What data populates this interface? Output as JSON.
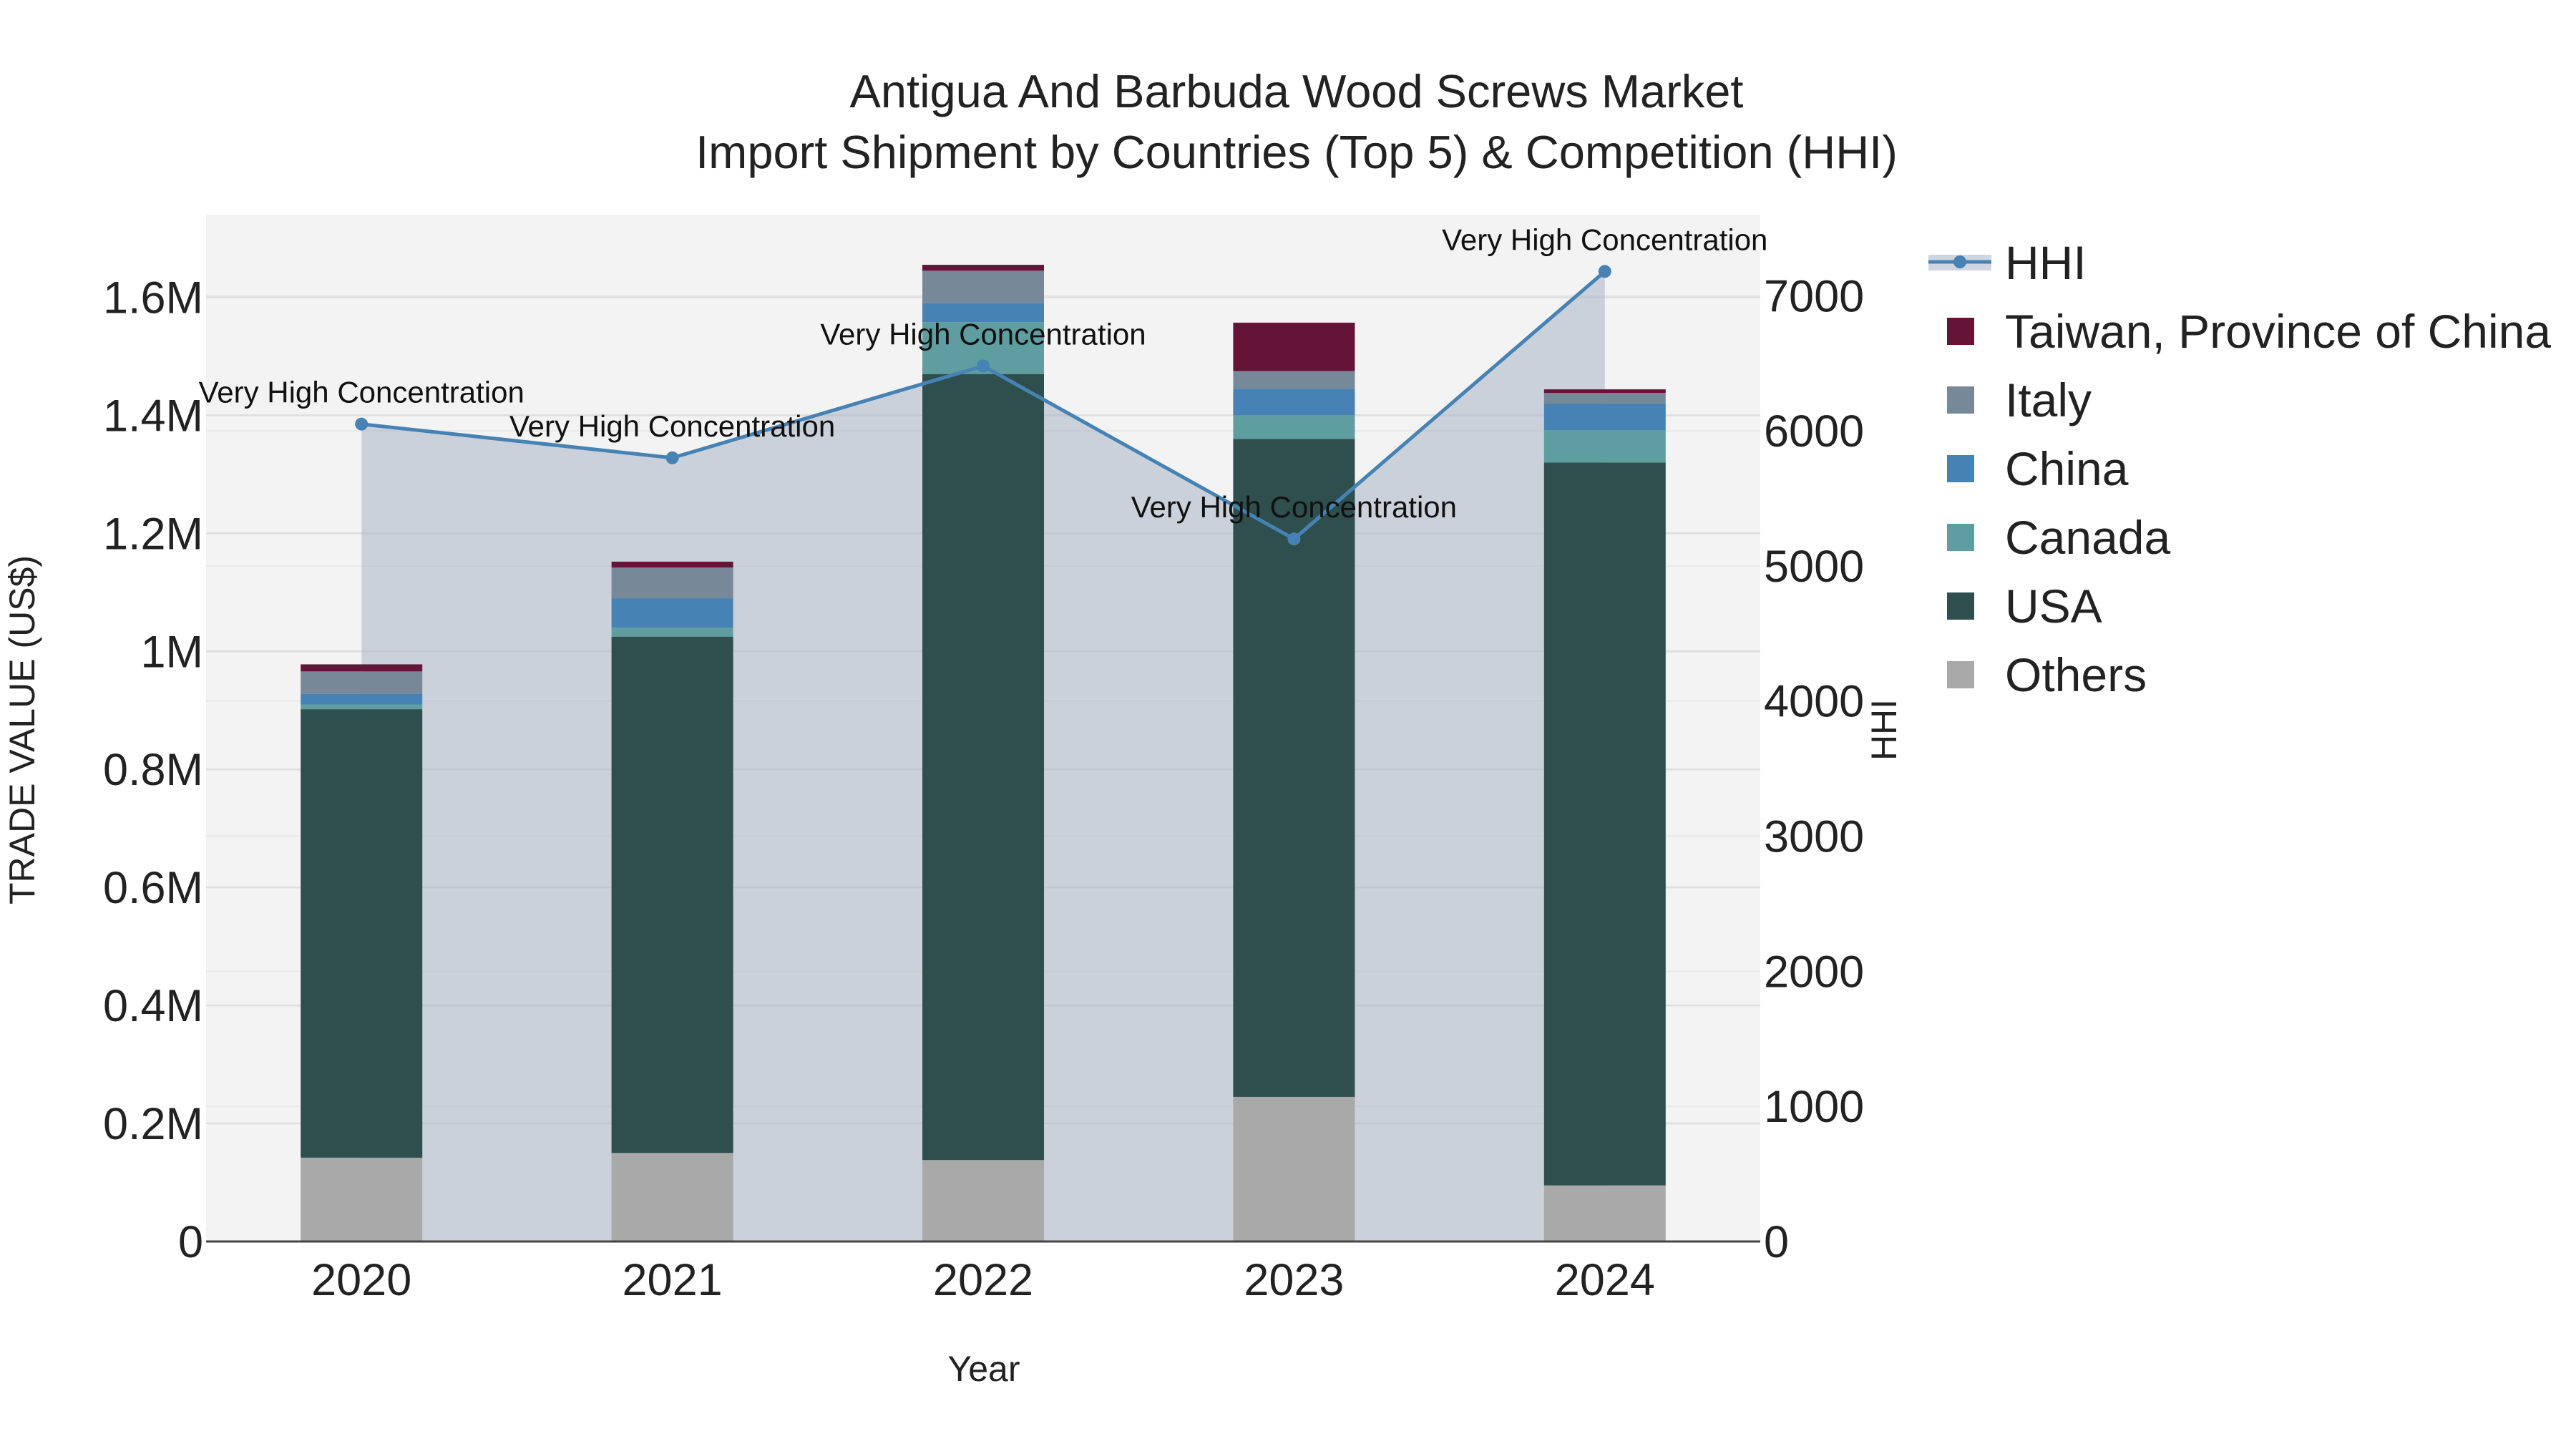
{
  "chart_data": {
    "type": "bar",
    "title": "Antigua And Barbuda Wood Screws Market",
    "subtitle": "Import Shipment by Countries (Top 5) & Competition (HHI)",
    "xlabel": "Year",
    "ylabel": "TRADE VALUE (US$)",
    "y2label": "HHI",
    "categories": [
      "2020",
      "2021",
      "2022",
      "2023",
      "2024"
    ],
    "ylim": [
      0,
      1740000
    ],
    "y2lim": [
      0,
      7600
    ],
    "yticks": [
      0,
      200000,
      400000,
      600000,
      800000,
      1000000,
      1200000,
      1400000,
      1600000
    ],
    "ytick_labels": [
      "0",
      "0.2M",
      "0.4M",
      "0.6M",
      "0.8M",
      "1M",
      "1.2M",
      "1.4M",
      "1.6M"
    ],
    "y2ticks": [
      0,
      1000,
      2000,
      3000,
      4000,
      5000,
      6000,
      7000
    ],
    "y2tick_labels": [
      "0",
      "1000",
      "2000",
      "3000",
      "4000",
      "5000",
      "6000",
      "7000"
    ],
    "series": [
      {
        "name": "Others",
        "color": "#a9a9a9",
        "values": [
          142000,
          150000,
          138000,
          245000,
          95000
        ]
      },
      {
        "name": "USA",
        "color": "#2f4f4f",
        "values": [
          760000,
          875000,
          1332000,
          1115000,
          1225000
        ]
      },
      {
        "name": "Canada",
        "color": "#5f9ea0",
        "values": [
          8000,
          15000,
          88000,
          40000,
          55000
        ]
      },
      {
        "name": "China",
        "color": "#4682b4",
        "values": [
          18000,
          50000,
          32000,
          45000,
          45000
        ]
      },
      {
        "name": "Italy",
        "color": "#778899",
        "values": [
          38000,
          52000,
          55000,
          30000,
          18000
        ]
      },
      {
        "name": "Taiwan, Province of China",
        "color": "#641537",
        "values": [
          12000,
          10000,
          10000,
          82000,
          6000
        ]
      }
    ],
    "hhi": {
      "name": "HHI",
      "color": "#4682b4",
      "values": [
        6050,
        5800,
        6480,
        5200,
        7180
      ],
      "annotations": [
        "Very High Concentration",
        "Very High Concentration",
        "Very High Concentration",
        "Very High Concentration",
        "Very High Concentration"
      ]
    },
    "legend_order": [
      "HHI",
      "Taiwan, Province of China",
      "Italy",
      "China",
      "Canada",
      "USA",
      "Others"
    ]
  }
}
